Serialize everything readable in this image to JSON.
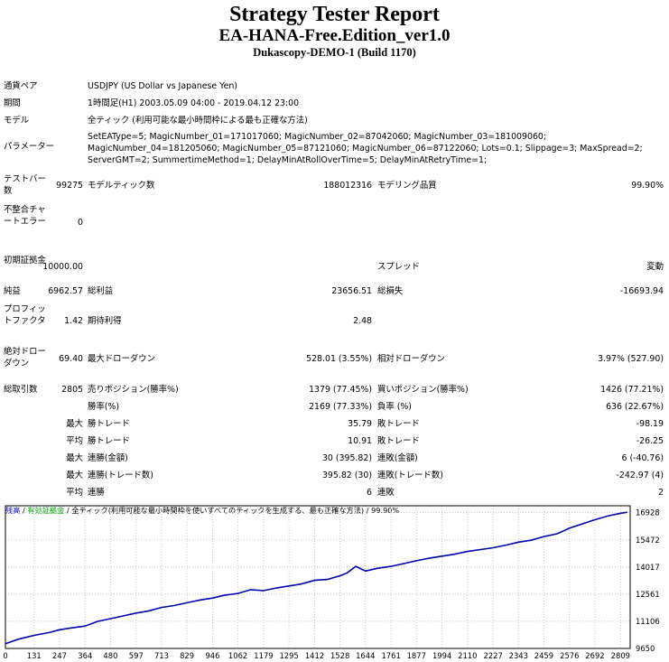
{
  "report": {
    "title": "Strategy Tester Report",
    "subtitle": "EA-HANA-Free.Edition_ver1.0",
    "server": "Dukascopy-DEMO-1 (Build 1170)"
  },
  "info": {
    "symbol_label": "通貨ペア",
    "symbol_value": "USDJPY (US Dollar vs Japanese Yen)",
    "period_label": "期間",
    "period_value": "1時間足(H1) 2003.05.09 04:00 - 2019.04.12 23:00",
    "model_label": "モデル",
    "model_value": "全ティック (利用可能な最小時間枠による最も正確な方法)",
    "params_label": "パラメーター",
    "params_value": "SetEAType=5; MagicNumber_01=171017060; MagicNumber_02=87042060; MagicNumber_03=181009060; MagicNumber_04=181205060; MagicNumber_05=87121060; MagicNumber_06=87122060; Lots=0.1; Slippage=3; MaxSpread=2; ServerGMT=2; SummertimeMethod=1; DelayMinAtRollOverTime=5; DelayMinAtRetryTime=1;"
  },
  "stats": {
    "bars_label": "テストバー数",
    "bars_value": "99275",
    "ticks_label": "モデルティック数",
    "ticks_value": "188012316",
    "quality_label": "モデリング品質",
    "quality_value": "99.90%",
    "mismatch_label": "不整合チャートエラー",
    "mismatch_value": "0",
    "deposit_label": "初期証拠金",
    "deposit_value": "10000.00",
    "spread_label": "スプレッド",
    "spread_value": "変動",
    "net_label": "純益",
    "net_value": "6962.57",
    "gross_profit_label": "総利益",
    "gross_profit_value": "23656.51",
    "gross_loss_label": "総損失",
    "gross_loss_value": "-16693.94",
    "pf_label": "プロフィットファクタ",
    "pf_value": "1.42",
    "payoff_label": "期待利得",
    "payoff_value": "2.48",
    "abs_dd_label": "絶対ドローダウン",
    "abs_dd_value": "69.40",
    "max_dd_label": "最大ドローダウン",
    "max_dd_value": "528.01 (3.55%)",
    "rel_dd_label": "相対ドローダウン",
    "rel_dd_value": "3.97% (527.90)",
    "trades_label": "総取引数",
    "trades_value": "2805",
    "short_label": "売りポジション(勝率%)",
    "short_value": "1379 (77.45%)",
    "long_label": "買いポジション(勝率%)",
    "long_value": "1426 (77.21%)",
    "win_label": "勝率(%)",
    "win_value": "2169 (77.33%)",
    "loss_label": "負率 (%)",
    "loss_value": "636 (22.67%)",
    "largest_prefix": "最大",
    "largest_win_label": "勝トレード",
    "largest_win_value": "35.79",
    "largest_loss_label": "敗トレード",
    "largest_loss_value": "-98.19",
    "average_prefix": "平均",
    "avg_win_label": "勝トレード",
    "avg_win_value": "10.91",
    "avg_loss_label": "敗トレード",
    "avg_loss_value": "-26.25",
    "max_prefix_1": "最大",
    "cons_wins_label": "連勝(金額)",
    "cons_wins_value": "30 (395.82)",
    "cons_losses_label": "連敗(金額)",
    "cons_losses_value": "6 (-40.76)",
    "max_prefix_2": "最大",
    "cons_profit_label": "連勝(トレード数)",
    "cons_profit_value": "395.82 (30)",
    "cons_loss_label": "連敗(トレード数)",
    "cons_loss_value": "-242.97 (4)",
    "avg_prefix_2": "平均",
    "avg_cons_wins_label": "連勝",
    "avg_cons_wins_value": "6",
    "avg_cons_losses_label": "連敗",
    "avg_cons_losses_value": "2"
  },
  "chart_data": {
    "type": "line",
    "header": {
      "balance": "残高",
      "sep1": " / ",
      "equity": "有効証拠金",
      "sep2": " / ",
      "model": "全ティック(利用可能な最小時間枠を使いすべてのティックを生成する、最も正確な方法)",
      "sep3": " / ",
      "quality": "99.90%"
    },
    "colors": {
      "balance": "#0000aa",
      "equity": "#00aa00",
      "header_text": "#0000cc",
      "grid": "#c8c8c8",
      "frame": "#000000"
    },
    "x_ticks": [
      0,
      131,
      247,
      364,
      480,
      597,
      713,
      829,
      946,
      1062,
      1179,
      1295,
      1412,
      1528,
      1644,
      1761,
      1877,
      1994,
      2110,
      2227,
      2343,
      2459,
      2576,
      2692,
      2809
    ],
    "y_ticks": [
      9650,
      11106,
      12561,
      14017,
      15472,
      16928
    ],
    "xlim": [
      0,
      2853
    ],
    "ylim": [
      9650,
      17300
    ],
    "series": [
      {
        "name": "残高",
        "x": [
          0,
          60,
          131,
          200,
          247,
          300,
          364,
          420,
          480,
          540,
          597,
          650,
          713,
          770,
          829,
          890,
          946,
          1000,
          1062,
          1120,
          1179,
          1240,
          1295,
          1350,
          1412,
          1470,
          1528,
          1560,
          1600,
          1644,
          1700,
          1761,
          1820,
          1877,
          1940,
          1994,
          2050,
          2110,
          2170,
          2227,
          2290,
          2343,
          2400,
          2459,
          2520,
          2576,
          2640,
          2692,
          2750,
          2809,
          2840
        ],
        "y": [
          9900,
          10150,
          10350,
          10500,
          10650,
          10750,
          10850,
          11100,
          11250,
          11400,
          11550,
          11650,
          11850,
          11950,
          12100,
          12250,
          12350,
          12500,
          12600,
          12800,
          12750,
          12900,
          13000,
          13100,
          13300,
          13350,
          13550,
          13700,
          14050,
          13800,
          13950,
          14050,
          14200,
          14350,
          14500,
          14600,
          14700,
          14850,
          14950,
          15050,
          15200,
          15350,
          15450,
          15650,
          15800,
          16100,
          16350,
          16550,
          16750,
          16900,
          16950
        ]
      }
    ]
  }
}
